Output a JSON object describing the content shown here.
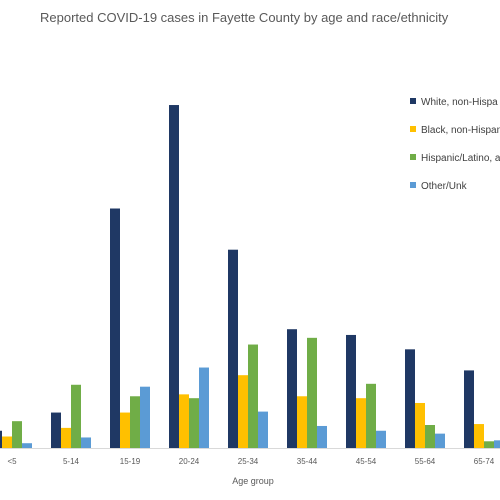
{
  "chart_data": {
    "type": "bar",
    "title": "Reported COVID-19 cases in Fayette County by age and race/ethnicity",
    "xlabel": "Age group",
    "ylabel": "",
    "categories": [
      "<5",
      "5-14",
      "15-19",
      "20-24",
      "25-34",
      "35-44",
      "45-54",
      "55-64",
      "65-74"
    ],
    "ylim": [
      0,
      360
    ],
    "grid": false,
    "legend_position": "right",
    "series": [
      {
        "name": "White, non-Hispa",
        "color": "#1f3864",
        "values": [
          18,
          37,
          250,
          358,
          207,
          124,
          118,
          103,
          81
        ]
      },
      {
        "name": "Black, non-Hispan",
        "color": "#ffc000",
        "values": [
          12,
          21,
          37,
          56,
          76,
          54,
          52,
          47,
          25
        ]
      },
      {
        "name": "Hispanic/Latino, a",
        "color": "#70ad47",
        "values": [
          28,
          66,
          54,
          52,
          108,
          115,
          67,
          24,
          7
        ]
      },
      {
        "name": "Other/Unk",
        "color": "#5b9bd5",
        "values": [
          5,
          11,
          64,
          84,
          38,
          23,
          18,
          15,
          8
        ]
      }
    ]
  }
}
